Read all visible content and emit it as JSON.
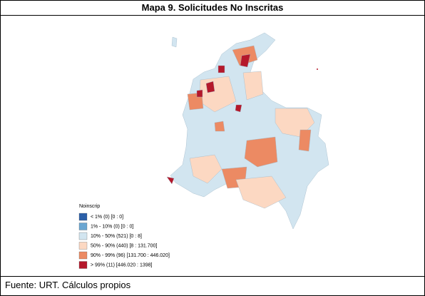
{
  "title": "Mapa 9. Solicitudes No Inscritas",
  "legend": {
    "title": "Noinscrip",
    "items": [
      {
        "label": "< 1% (0)  [0 : 0]",
        "color": "#2b5fa8"
      },
      {
        "label": "1% - 10% (0)  [0 : 0]",
        "color": "#6aa6d2"
      },
      {
        "label": "10% - 50% (521)  [0 : 8]",
        "color": "#d2e5f0"
      },
      {
        "label": "50% - 90% (440)  [8 : 131.700]",
        "color": "#fcd8c2"
      },
      {
        "label": "90% - 99% (96)  [131.700 : 446.020]",
        "color": "#ec8a63"
      },
      {
        "label": "> 99% (11)  [446.020 : 1398]",
        "color": "#b5182b"
      }
    ]
  },
  "source": "Fuente: URT. Cálculos propios"
}
